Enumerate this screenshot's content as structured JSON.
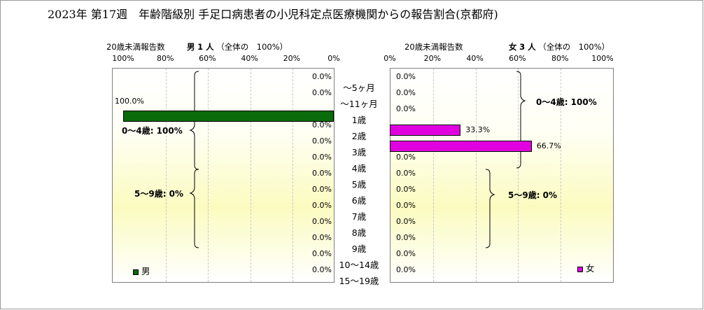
{
  "title": "2023年 第17週　年齢階級別 手足口病患者の小児科定点医療機関からの報告割合(京都府)",
  "male_header": {
    "under20_label": "20歳未満報告数",
    "sex": "男",
    "count": "1 人",
    "whole": "（全体の　100%）"
  },
  "female_header": {
    "under20_label": "20歳未満報告数",
    "sex": "女",
    "count": "3 人",
    "whole": "（全体の　100%）"
  },
  "colors": {
    "male": "#0a6b0a",
    "female": "#e000e0"
  },
  "chart_data": {
    "type": "bar",
    "categories": [
      "～5ヶ月",
      "～11ヶ月",
      "1歳",
      "2歳",
      "3歳",
      "4歳",
      "5歳",
      "6歳",
      "7歳",
      "8歳",
      "9歳",
      "10～14歳",
      "15～19歳"
    ],
    "x_ticks_male": [
      "100%",
      "80%",
      "60%",
      "40%",
      "20%",
      "0%"
    ],
    "x_ticks_female": [
      "0%",
      "20%",
      "40%",
      "60%",
      "80%",
      "100%"
    ],
    "xlim": [
      0,
      100
    ],
    "series": [
      {
        "name": "男",
        "values": [
          0,
          0,
          100,
          0,
          0,
          0,
          0,
          0,
          0,
          0,
          0,
          0,
          0
        ],
        "labels": [
          "0.0%",
          "0.0%",
          "100.0%",
          "0.0%",
          "0.0%",
          "0.0%",
          "0.0%",
          "0.0%",
          "0.0%",
          "0.0%",
          "0.0%",
          "0.0%",
          "0.0%"
        ]
      },
      {
        "name": "女",
        "values": [
          0,
          0,
          0,
          33.3,
          66.7,
          0,
          0,
          0,
          0,
          0,
          0,
          0,
          0
        ],
        "labels": [
          "0.0%",
          "0.0%",
          "0.0%",
          "33.3%",
          "66.7%",
          "0.0%",
          "0.0%",
          "0.0%",
          "0.0%",
          "0.0%",
          "0.0%",
          "0.0%",
          "0.0%"
        ]
      }
    ],
    "group_annotations": {
      "male": [
        "0～4歳: 100%",
        "5～9歳: 0%"
      ],
      "female": [
        "0～4歳: 100%",
        "5～9歳: 0%"
      ]
    }
  }
}
